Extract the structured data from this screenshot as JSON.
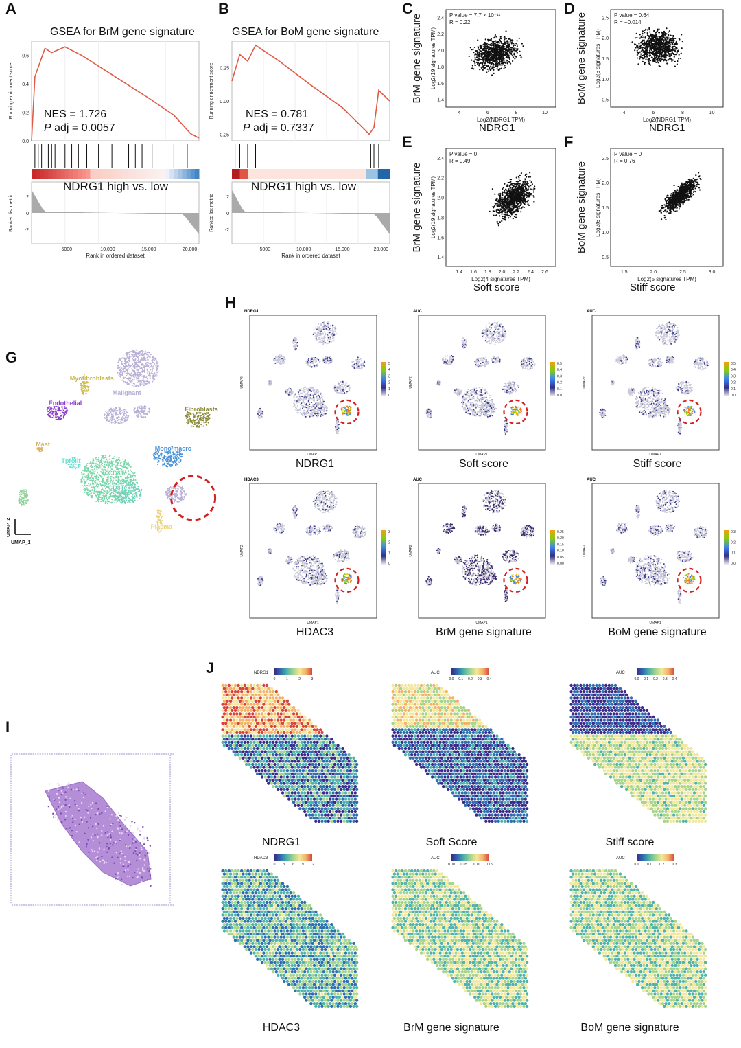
{
  "panel_letters": {
    "A": "A",
    "B": "B",
    "C": "C",
    "D": "D",
    "E": "E",
    "F": "F",
    "G": "G",
    "H": "H",
    "I": "I",
    "J": "J"
  },
  "gsea": [
    {
      "title": "GSEA for BrM gene signature",
      "nes": "NES = 1.726",
      "padj": "adj = 0.0057",
      "comparison": "NDRG1  high vs. low",
      "ylabel": "Running enrichment score",
      "ylabel2": "Ranked list metric",
      "xlabel": "Rank in ordered dataset",
      "yticks": [
        "0.0",
        "0.2",
        "0.4",
        "0.6"
      ],
      "xticks": [
        "5000",
        "10,000",
        "15,000",
        "20,000"
      ],
      "y2ticks": [
        "2",
        "0",
        "-2"
      ]
    },
    {
      "title": "GSEA for BoM gene signature",
      "nes": "NES = 0.781",
      "padj": "adj = 0.7337",
      "comparison": "NDRG1  high vs. low",
      "ylabel": "Running enrichment score",
      "ylabel2": "Ranked list metric",
      "xlabel": "Rank in ordered dataset",
      "yticks": [
        "0.25",
        "0.00",
        "-0.25"
      ],
      "xticks": [
        "5000",
        "10,000",
        "15,000",
        "20,000"
      ],
      "y2ticks": [
        "2",
        "0",
        "-2"
      ]
    }
  ],
  "p_italic": "P",
  "scatter": [
    {
      "ytitle": "BrM gene signature",
      "ylab": "Log2(19 signatures TPM)",
      "xlab": "Log2(NDRG1 TPM)",
      "xtitle": "NDRG1",
      "pval": "P value = 7.7 × 10⁻¹¹",
      "r": "R = 0.22",
      "xticks": [
        "4",
        "6",
        "8",
        "10"
      ],
      "yticks": [
        "1.4",
        "1.6",
        "1.8",
        "2.0",
        "2.2",
        "2.4"
      ]
    },
    {
      "ytitle": "BoM gene signature",
      "ylab": "Log2(6 signatures TPM)",
      "xlab": "Log2(NDRG1 TPM)",
      "xtitle": "NDRG1",
      "pval": "P value = 0.64",
      "r": "R = −0.014",
      "xticks": [
        "4",
        "6",
        "8",
        "10"
      ],
      "yticks": [
        "0.5",
        "1.0",
        "1.5",
        "2.0",
        "2.5"
      ]
    },
    {
      "ytitle": "BrM gene signature",
      "ylab": "Log2(19 signatures TPM)",
      "xlab": "Log2(4 signatures TPM)",
      "xtitle": "Soft score",
      "pval": "P value = 0",
      "r": "R = 0.49",
      "xticks": [
        "1.4",
        "1.6",
        "1.8",
        "2.0",
        "2.2",
        "2.4",
        "2.6"
      ],
      "yticks": [
        "1.4",
        "1.6",
        "1.8",
        "2.0",
        "2.2",
        "2.4"
      ]
    },
    {
      "ytitle": "BoM gene signature",
      "ylab": "Log2(6 signatures TPM)",
      "xlab": "Log2(5 signatures TPM)",
      "xtitle": "Stiff score",
      "pval": "P value = 0",
      "r": "R = 0.76",
      "xticks": [
        "1.5",
        "2.0",
        "2.5",
        "3.0"
      ],
      "yticks": [
        "0.5",
        "1.0",
        "1.5",
        "2.0",
        "2.5"
      ]
    }
  ],
  "umap_g": {
    "clusters": [
      "Myofibroblasts",
      "Malignant",
      "Endothelial",
      "Fibroblasts",
      "Mast",
      "Mono/macro",
      "Tprolif",
      "CD8T",
      "CD8Tex",
      "B",
      "Plasma"
    ],
    "axis_y": "UMAP_2",
    "axis_x": "UMAP_1",
    "colors": {
      "Myofibroblasts": "#c9b94a",
      "Malignant": "#b9b0d6",
      "Endothelial": "#8a3fc9",
      "Fibroblasts": "#8a8a3a",
      "Mast": "#d8b56a",
      "Mono/macro": "#4a92d8",
      "Tprolif": "#5fe0d0",
      "CD8T": "#79d6a8",
      "CD8Tex": "#6fd3b7",
      "B": "#8fd19a",
      "Plasma": "#e9d27a"
    }
  },
  "umap_h": [
    {
      "tag": "NDRG1",
      "caption": "NDRG1",
      "legend": [
        "5",
        "4",
        "3",
        "2",
        "1",
        "0"
      ]
    },
    {
      "tag": "AUC",
      "caption": "Soft score",
      "legend": [
        "0.5",
        "0.4",
        "0.3",
        "0.2",
        "0.1",
        "0.0"
      ]
    },
    {
      "tag": "AUC",
      "caption": "Stiff score",
      "legend": [
        "0.5",
        "0.4",
        "0.3",
        "0.2",
        "0.1",
        "0.0"
      ]
    },
    {
      "tag": "HDAC3",
      "caption": "HDAC3",
      "legend": [
        "3",
        "2",
        "1",
        "0"
      ]
    },
    {
      "tag": "AUC",
      "caption": "BrM gene signature",
      "legend": [
        "0.25",
        "0.20",
        "0.15",
        "0.10",
        "0.05",
        "0.00"
      ]
    },
    {
      "tag": "AUC",
      "caption": "BoM gene signature",
      "legend": [
        "0.3",
        "0.2",
        "0.1",
        "0.0"
      ]
    }
  ],
  "umap_axis": {
    "x": "UMAP1",
    "y": "UMAP2"
  },
  "spatial": [
    {
      "tag": "NDRG1",
      "caption": "NDRG1",
      "ticks": [
        "0",
        "1",
        "2",
        "3"
      ]
    },
    {
      "tag": "AUC",
      "caption": "Soft Score",
      "ticks": [
        "0.0",
        "0.1",
        "0.2",
        "0.3",
        "0.4"
      ]
    },
    {
      "tag": "AUC",
      "caption": "Stiff score",
      "ticks": [
        "0.0",
        "0.1",
        "0.2",
        "0.3",
        "0.4"
      ]
    },
    {
      "tag": "HDAC3",
      "caption": "HDAC3",
      "ticks": [
        "0",
        "3",
        "6",
        "9",
        "12"
      ]
    },
    {
      "tag": "AUC",
      "caption": "BrM gene signature",
      "ticks": [
        "0.00",
        "0.05",
        "0.10",
        "0.15"
      ]
    },
    {
      "tag": "AUC",
      "caption": "BoM gene signature",
      "ticks": [
        "0.0",
        "0.1",
        "0.2",
        "0.3"
      ]
    }
  ]
}
